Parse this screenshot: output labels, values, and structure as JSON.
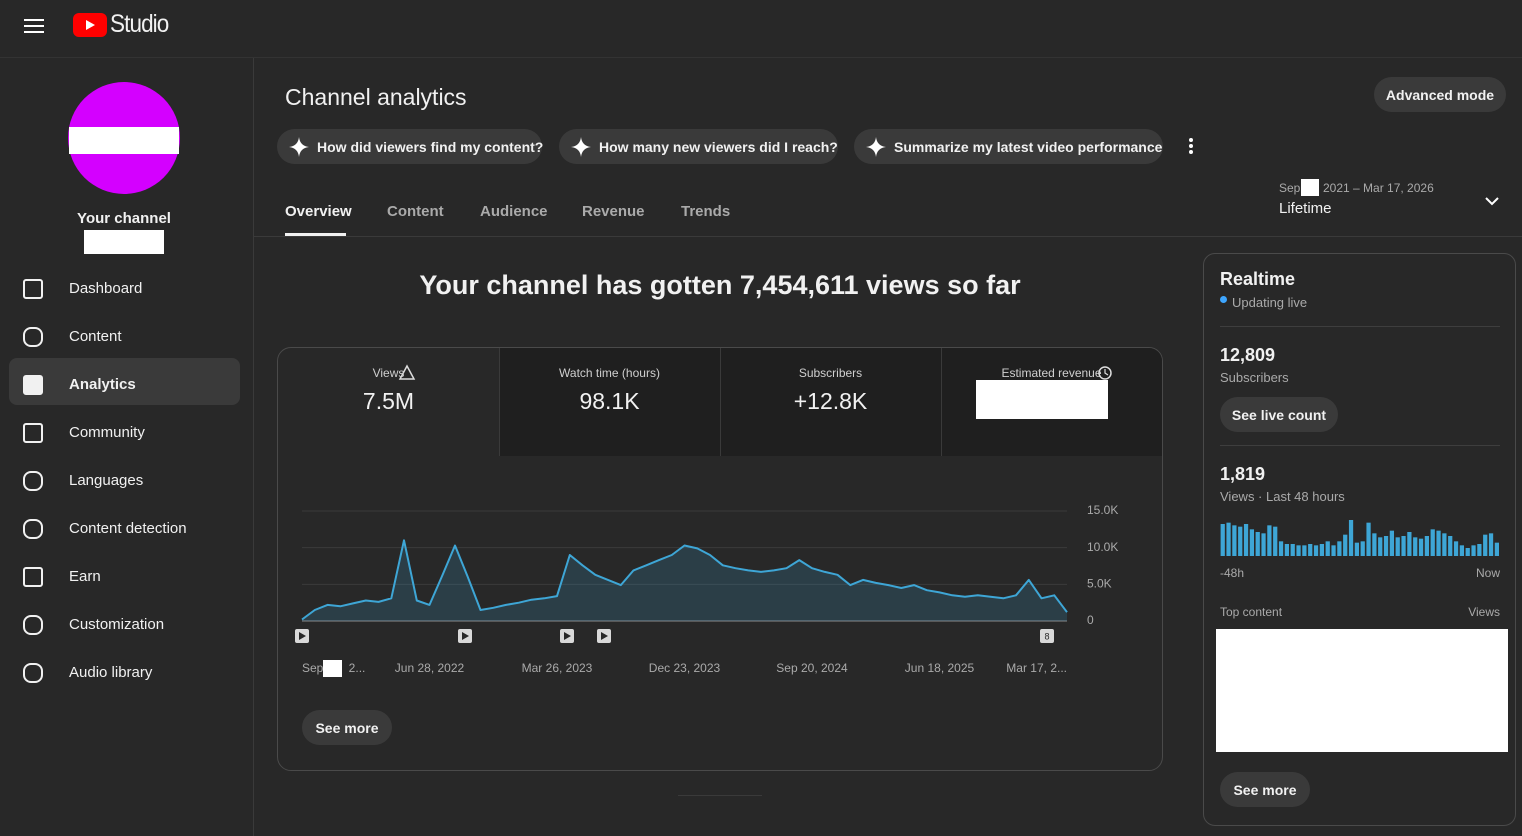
{
  "header": {
    "logo": "Studio"
  },
  "sidebar": {
    "channel_label": "Your channel",
    "nav": [
      "Dashboard",
      "Content",
      "Analytics",
      "Community",
      "Languages",
      "Content detection",
      "Earn",
      "Customization",
      "Audio library"
    ],
    "active": 2
  },
  "page": {
    "title": "Channel analytics",
    "advanced_mode": "Advanced mode",
    "chips": [
      "How did viewers find my content?",
      "How many new viewers did I reach?",
      "Summarize my latest video performance"
    ],
    "tabs": [
      "Overview",
      "Content",
      "Audience",
      "Revenue",
      "Trends"
    ],
    "date_range": {
      "start": "Sep",
      "end": "2021 – Mar 17, 2026",
      "label": "Lifetime"
    },
    "headline": "Your channel has gotten 7,454,611 views so far",
    "metrics": [
      {
        "label": "Views",
        "value": "7.5M"
      },
      {
        "label": "Watch time (hours)",
        "value": "98.1K"
      },
      {
        "label": "Subscribers",
        "value": "+12.8K"
      },
      {
        "label": "Estimated revenue"
      }
    ],
    "video_group_count": "8",
    "see_more": "See more"
  },
  "realtime": {
    "title": "Realtime",
    "status": "Updating live",
    "subscribers": "12,809",
    "subscribers_label": "Subscribers",
    "live_count_button": "See live count",
    "views": "1,819",
    "views_label": "Views · Last 48 hours",
    "start_label": "-48h",
    "end_label": "Now",
    "top_content": "Top content",
    "top_content_metric": "Views",
    "see_more": "See more"
  },
  "chart_data": [
    {
      "type": "area",
      "color": "#3ea6d6",
      "values": [
        200,
        1500,
        2200,
        2000,
        2400,
        2800,
        2600,
        3100,
        11000,
        2800,
        2200,
        6200,
        10300,
        6000,
        1500,
        1800,
        2200,
        2500,
        2900,
        3100,
        3400,
        9000,
        7600,
        6300,
        5600,
        4900,
        6900,
        7600,
        8300,
        9000,
        10300,
        9900,
        9000,
        7600,
        7200,
        6900,
        6700,
        6900,
        7200,
        8300,
        7200,
        6700,
        6300,
        4900,
        5600,
        5200,
        4900,
        4500,
        4900,
        4200,
        3900,
        3500,
        3300,
        3500,
        3300,
        3100,
        3500,
        5600,
        3100,
        3500,
        1200
      ],
      "xlim": [
        0,
        60
      ],
      "xticks": [
        {
          "value": 0,
          "label": "Sep 2..."
        },
        {
          "value": 10,
          "label": "Jun 28, 2022"
        },
        {
          "value": 20,
          "label": "Mar 26, 2023"
        },
        {
          "value": 30,
          "label": "Dec 23, 2023"
        },
        {
          "value": 40,
          "label": "Sep 20, 2024"
        },
        {
          "value": 50,
          "label": "Jun 18, 2025"
        },
        {
          "value": 60,
          "label": "Mar 17, 2..."
        }
      ],
      "ylim": [
        0,
        15000
      ],
      "yticks": [
        0,
        {
          "value": 5000,
          "label": "5.0K"
        },
        {
          "value": 10000,
          "label": "10.0K"
        },
        {
          "value": 15000,
          "label": "15.0K"
        }
      ],
      "grid": true
    },
    {
      "type": "bar",
      "color": "#3ea6d6",
      "values": [
        48,
        50,
        46,
        44,
        48,
        40,
        36,
        34,
        46,
        44,
        22,
        18,
        18,
        16,
        16,
        18,
        16,
        18,
        22,
        16,
        22,
        32,
        54,
        20,
        22,
        50,
        34,
        28,
        30,
        38,
        28,
        30,
        36,
        28,
        26,
        30,
        40,
        38,
        34,
        30,
        22,
        16,
        12,
        16,
        18,
        32,
        34,
        20
      ]
    }
  ]
}
